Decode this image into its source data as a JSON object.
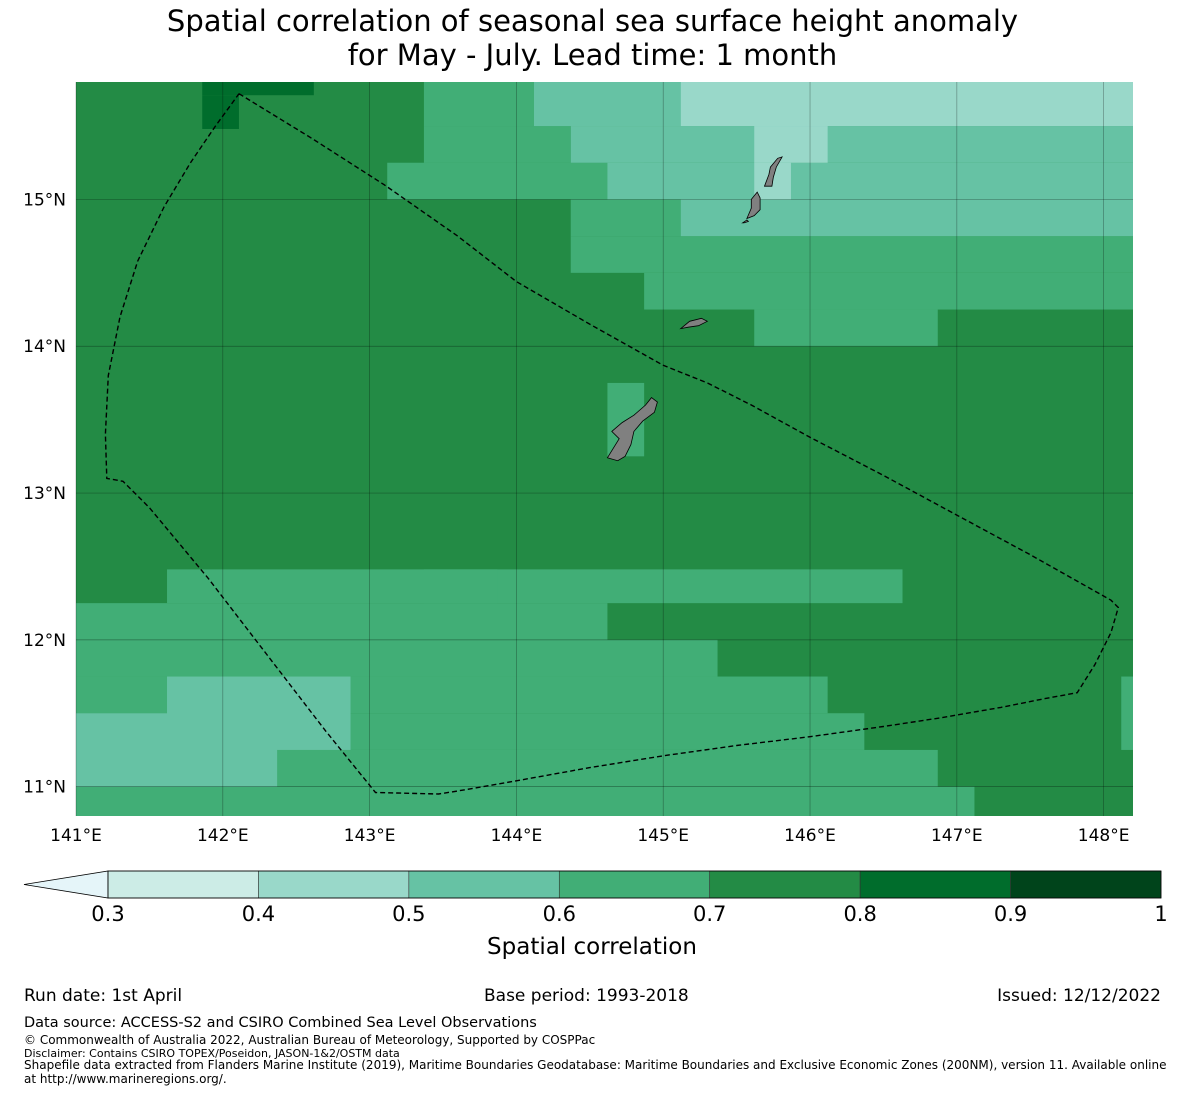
{
  "title": {
    "line1": "Spatial correlation of seasonal sea surface height anomaly",
    "line2": "for May - July. Lead time: 1 month"
  },
  "map": {
    "extent": {
      "lon_min": 141.0,
      "lon_max": 148.2,
      "lat_min": 10.8,
      "lat_max": 15.8
    },
    "lat_ticks": [
      {
        "value": 15,
        "label": "15°N"
      },
      {
        "value": 14,
        "label": "14°N"
      },
      {
        "value": 13,
        "label": "13°N"
      },
      {
        "value": 12,
        "label": "12°N"
      },
      {
        "value": 11,
        "label": "11°N"
      }
    ],
    "lon_ticks": [
      {
        "value": 141,
        "label": "141°E"
      },
      {
        "value": 142,
        "label": "142°E"
      },
      {
        "value": 143,
        "label": "143°E"
      },
      {
        "value": 144,
        "label": "144°E"
      },
      {
        "value": 145,
        "label": "145°E"
      },
      {
        "value": 146,
        "label": "146°E"
      },
      {
        "value": 147,
        "label": "147°E"
      },
      {
        "value": 148,
        "label": "148°E"
      }
    ],
    "background_class": 5,
    "cells": [
      {
        "lon": [
          141.86,
          142.62
        ],
        "lat": [
          15.71,
          15.8
        ],
        "class": 6
      },
      {
        "lon": [
          141.86,
          142.11
        ],
        "lat": [
          15.48,
          15.71
        ],
        "class": 6
      },
      {
        "lon": [
          143.37,
          146.63
        ],
        "lat": [
          12.25,
          12.48
        ],
        "class": 4
      },
      {
        "lon": [
          141.62,
          143.87
        ],
        "lat": [
          12.25,
          12.48
        ],
        "class": 4
      },
      {
        "lon": [
          141.0,
          144.62
        ],
        "lat": [
          12.0,
          12.25
        ],
        "class": 4
      },
      {
        "lon": [
          141.0,
          145.37
        ],
        "lat": [
          11.75,
          12.0
        ],
        "class": 4
      },
      {
        "lon": [
          141.0,
          146.12
        ],
        "lat": [
          11.5,
          11.75
        ],
        "class": 4
      },
      {
        "lon": [
          141.0,
          146.37
        ],
        "lat": [
          11.25,
          11.5
        ],
        "class": 4
      },
      {
        "lon": [
          141.0,
          146.87
        ],
        "lat": [
          11.0,
          11.25
        ],
        "class": 4
      },
      {
        "lon": [
          141.0,
          147.12
        ],
        "lat": [
          10.8,
          11.0
        ],
        "class": 4
      },
      {
        "lon": [
          141.62,
          142.87
        ],
        "lat": [
          11.25,
          11.75
        ],
        "class": 3
      },
      {
        "lon": [
          141.0,
          142.37
        ],
        "lat": [
          11.0,
          11.5
        ],
        "class": 3
      },
      {
        "lon": [
          148.12,
          148.2
        ],
        "lat": [
          11.25,
          11.75
        ],
        "class": 4
      },
      {
        "lon": [
          144.62,
          144.87
        ],
        "lat": [
          13.25,
          13.75
        ],
        "class": 4
      },
      {
        "lon": [
          143.37,
          144.87
        ],
        "lat": [
          15.23,
          15.25
        ],
        "class": 4
      },
      {
        "lon": [
          143.12,
          148.2
        ],
        "lat": [
          15.0,
          15.25
        ],
        "class": 4
      },
      {
        "lon": [
          144.37,
          148.2
        ],
        "lat": [
          14.75,
          15.0
        ],
        "class": 4
      },
      {
        "lon": [
          144.37,
          148.2
        ],
        "lat": [
          14.5,
          14.75
        ],
        "class": 4
      },
      {
        "lon": [
          144.87,
          148.2
        ],
        "lat": [
          14.25,
          14.5
        ],
        "class": 4
      },
      {
        "lon": [
          145.62,
          146.87
        ],
        "lat": [
          14.0,
          14.25
        ],
        "class": 4
      },
      {
        "lon": [
          143.37,
          144.37
        ],
        "lat": [
          15.25,
          15.5
        ],
        "class": 4
      },
      {
        "lon": [
          143.37,
          145.87
        ],
        "lat": [
          15.5,
          15.8
        ],
        "class": 4
      },
      {
        "lon": [
          144.12,
          145.12
        ],
        "lat": [
          15.5,
          15.8
        ],
        "class": 3
      },
      {
        "lon": [
          144.37,
          148.2
        ],
        "lat": [
          15.25,
          15.5
        ],
        "class": 3
      },
      {
        "lon": [
          144.62,
          148.2
        ],
        "lat": [
          15.0,
          15.25
        ],
        "class": 3
      },
      {
        "lon": [
          145.12,
          148.2
        ],
        "lat": [
          14.75,
          15.0
        ],
        "class": 3
      },
      {
        "lon": [
          144.12,
          148.2
        ],
        "lat": [
          15.5,
          15.8
        ],
        "class": 3
      },
      {
        "lon": [
          145.12,
          148.2
        ],
        "lat": [
          15.5,
          15.8
        ],
        "class": 2
      },
      {
        "lon": [
          145.62,
          146.12
        ],
        "lat": [
          15.25,
          15.5
        ],
        "class": 2
      },
      {
        "lon": [
          145.62,
          145.87
        ],
        "lat": [
          15.0,
          15.25
        ],
        "class": 2
      }
    ],
    "islands": [
      {
        "name": "Guam",
        "outline": [
          [
            144.62,
            13.24
          ],
          [
            144.7,
            13.37
          ],
          [
            144.65,
            13.42
          ],
          [
            144.72,
            13.48
          ],
          [
            144.8,
            13.53
          ],
          [
            144.88,
            13.6
          ],
          [
            144.92,
            13.65
          ],
          [
            144.96,
            13.62
          ],
          [
            144.94,
            13.55
          ],
          [
            144.86,
            13.49
          ],
          [
            144.8,
            13.42
          ],
          [
            144.78,
            13.33
          ],
          [
            144.74,
            13.25
          ],
          [
            144.69,
            13.22
          ]
        ]
      },
      {
        "name": "Rota",
        "outline": [
          [
            145.12,
            14.12
          ],
          [
            145.18,
            14.17
          ],
          [
            145.26,
            14.19
          ],
          [
            145.3,
            14.17
          ],
          [
            145.24,
            14.14
          ],
          [
            145.17,
            14.13
          ]
        ]
      },
      {
        "name": "Tinian",
        "outline": [
          [
            145.57,
            14.87
          ],
          [
            145.6,
            14.94
          ],
          [
            145.6,
            15.0
          ],
          [
            145.64,
            15.05
          ],
          [
            145.66,
            15.01
          ],
          [
            145.66,
            14.93
          ],
          [
            145.62,
            14.89
          ]
        ]
      },
      {
        "name": "Aguijan",
        "outline": [
          [
            145.54,
            14.84
          ],
          [
            145.57,
            14.86
          ],
          [
            145.58,
            14.85
          ],
          [
            145.55,
            14.84
          ]
        ]
      },
      {
        "name": "Saipan",
        "outline": [
          [
            145.69,
            15.09
          ],
          [
            145.72,
            15.17
          ],
          [
            145.73,
            15.22
          ],
          [
            145.78,
            15.28
          ],
          [
            145.81,
            15.29
          ],
          [
            145.77,
            15.22
          ],
          [
            145.75,
            15.15
          ],
          [
            145.74,
            15.09
          ]
        ]
      }
    ],
    "eez_boundary": [
      [
        142.11,
        15.72
      ],
      [
        142.6,
        15.42
      ],
      [
        143.1,
        15.1
      ],
      [
        143.6,
        14.75
      ],
      [
        144.0,
        14.44
      ],
      [
        144.5,
        14.15
      ],
      [
        145.0,
        13.87
      ],
      [
        145.3,
        13.75
      ],
      [
        145.6,
        13.6
      ],
      [
        146.0,
        13.38
      ],
      [
        146.5,
        13.12
      ],
      [
        147.0,
        12.85
      ],
      [
        147.5,
        12.58
      ],
      [
        148.05,
        12.27
      ],
      [
        148.1,
        12.22
      ],
      [
        148.05,
        12.05
      ],
      [
        147.94,
        11.83
      ],
      [
        147.82,
        11.64
      ],
      [
        147.6,
        11.6
      ],
      [
        147.3,
        11.54
      ],
      [
        146.9,
        11.47
      ],
      [
        146.5,
        11.41
      ],
      [
        146.0,
        11.34
      ],
      [
        145.5,
        11.28
      ],
      [
        145.0,
        11.21
      ],
      [
        144.5,
        11.13
      ],
      [
        144.0,
        11.04
      ],
      [
        143.6,
        10.97
      ],
      [
        143.47,
        10.95
      ],
      [
        143.04,
        10.96
      ],
      [
        142.7,
        11.38
      ],
      [
        142.3,
        11.9
      ],
      [
        141.9,
        12.42
      ],
      [
        141.5,
        12.9
      ],
      [
        141.32,
        13.08
      ],
      [
        141.21,
        13.1
      ],
      [
        141.2,
        13.4
      ],
      [
        141.22,
        13.8
      ],
      [
        141.3,
        14.2
      ],
      [
        141.42,
        14.58
      ],
      [
        141.6,
        14.95
      ],
      [
        141.78,
        15.25
      ],
      [
        141.95,
        15.5
      ],
      [
        142.11,
        15.72
      ]
    ],
    "colors": {
      "ocean_border": "#000000",
      "land": "#808080",
      "gridline": "#000000",
      "boundary": "#000000"
    }
  },
  "colorbar": {
    "label": "Spatial correlation",
    "ticks": [
      "0.3",
      "0.4",
      "0.5",
      "0.6",
      "0.7",
      "0.8",
      "0.9",
      "1"
    ],
    "extend_color": "#e5f5f9",
    "bins": [
      {
        "from": 0.3,
        "to": 0.4,
        "color": "#ccece6"
      },
      {
        "from": 0.4,
        "to": 0.5,
        "color": "#99d8c9"
      },
      {
        "from": 0.5,
        "to": 0.6,
        "color": "#66c2a4"
      },
      {
        "from": 0.6,
        "to": 0.7,
        "color": "#41ae76"
      },
      {
        "from": 0.7,
        "to": 0.8,
        "color": "#238b45"
      },
      {
        "from": 0.8,
        "to": 0.9,
        "color": "#006d2c"
      },
      {
        "from": 0.9,
        "to": 1.0,
        "color": "#00441b"
      }
    ]
  },
  "footer": {
    "run_date": "Run date: 1st April",
    "base_period": "Base period: 1993-2018",
    "issued": "Issued: 12/12/2022",
    "data_source": "Data source: ACCESS-S2 and CSIRO Combined Sea Level Observations",
    "copyright": "© Commonwealth of Australia 2022, Australian Bureau of Meteorology, Supported by COSPPac",
    "disclaimer": "Disclaimer: Contains CSIRO TOPEX/Poseidon, JASON-1&2/OSTM data",
    "shapefile_1": "Shapefile data extracted from Flanders Marine Institute (2019), Maritime Boundaries Geodatabase: Maritime Boundaries and Exclusive Economic Zones (200NM), version 11. Available online",
    "shapefile_2": "at http://www.marineregions.org/."
  }
}
